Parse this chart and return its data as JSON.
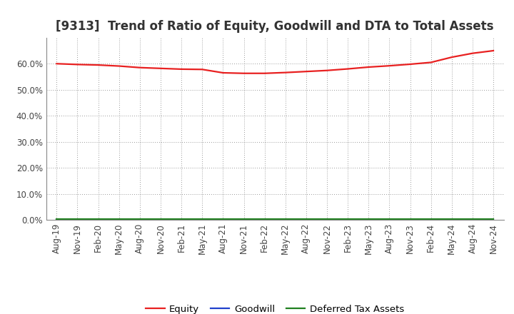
{
  "title": "[9313]  Trend of Ratio of Equity, Goodwill and DTA to Total Assets",
  "x_labels": [
    "Aug-19",
    "Nov-19",
    "Feb-20",
    "May-20",
    "Aug-20",
    "Nov-20",
    "Feb-21",
    "May-21",
    "Aug-21",
    "Nov-21",
    "Feb-22",
    "May-22",
    "Aug-22",
    "Nov-22",
    "Feb-23",
    "May-23",
    "Aug-23",
    "Nov-23",
    "Feb-24",
    "May-24",
    "Aug-24",
    "Nov-24"
  ],
  "equity": [
    60.0,
    59.7,
    59.5,
    59.1,
    58.5,
    58.2,
    57.9,
    57.8,
    56.5,
    56.3,
    56.3,
    56.6,
    57.0,
    57.4,
    58.0,
    58.7,
    59.2,
    59.8,
    60.5,
    62.5,
    64.0,
    65.0
  ],
  "goodwill": [
    0.0,
    0.0,
    0.0,
    0.0,
    0.0,
    0.0,
    0.0,
    0.0,
    0.0,
    0.0,
    0.0,
    0.0,
    0.0,
    0.0,
    0.0,
    0.0,
    0.0,
    0.0,
    0.0,
    0.0,
    0.0,
    0.0
  ],
  "dta": [
    0.3,
    0.3,
    0.3,
    0.3,
    0.3,
    0.3,
    0.3,
    0.3,
    0.3,
    0.3,
    0.3,
    0.3,
    0.3,
    0.3,
    0.3,
    0.3,
    0.3,
    0.3,
    0.3,
    0.3,
    0.3,
    0.3
  ],
  "equity_color": "#e82020",
  "goodwill_color": "#2040cc",
  "dta_color": "#208020",
  "ylim": [
    0,
    70
  ],
  "yticks": [
    0,
    10,
    20,
    30,
    40,
    50,
    60
  ],
  "background_color": "#ffffff",
  "plot_bg_color": "#ffffff",
  "grid_color": "#999999",
  "title_fontsize": 12,
  "tick_fontsize": 8.5,
  "legend_fontsize": 9.5
}
